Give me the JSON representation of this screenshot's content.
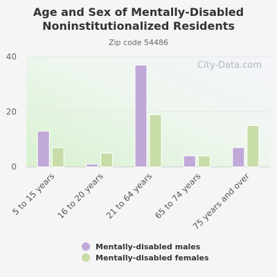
{
  "chart_data": {
    "type": "bar",
    "title": "Age and Sex of Mentally-Disabled Noninstitutionalized Residents",
    "subtitle": "Zip code 54486",
    "categories": [
      "5 to 15 years",
      "16 to 20 years",
      "21 to 64 years",
      "65 to 74 years",
      "75 years and over"
    ],
    "series": [
      {
        "name": "Mentally-disabled males",
        "values": [
          13,
          1,
          37,
          4,
          7
        ],
        "color": "#c0a8d8"
      },
      {
        "name": "Mentally-disabled females",
        "values": [
          7,
          5,
          19,
          4,
          15
        ],
        "color": "#c8dca8"
      }
    ],
    "yticks": [
      0,
      20,
      40
    ],
    "ylim": [
      0,
      40
    ],
    "grid": true,
    "legend_position": "bottom"
  },
  "watermark": "City-Data.com"
}
